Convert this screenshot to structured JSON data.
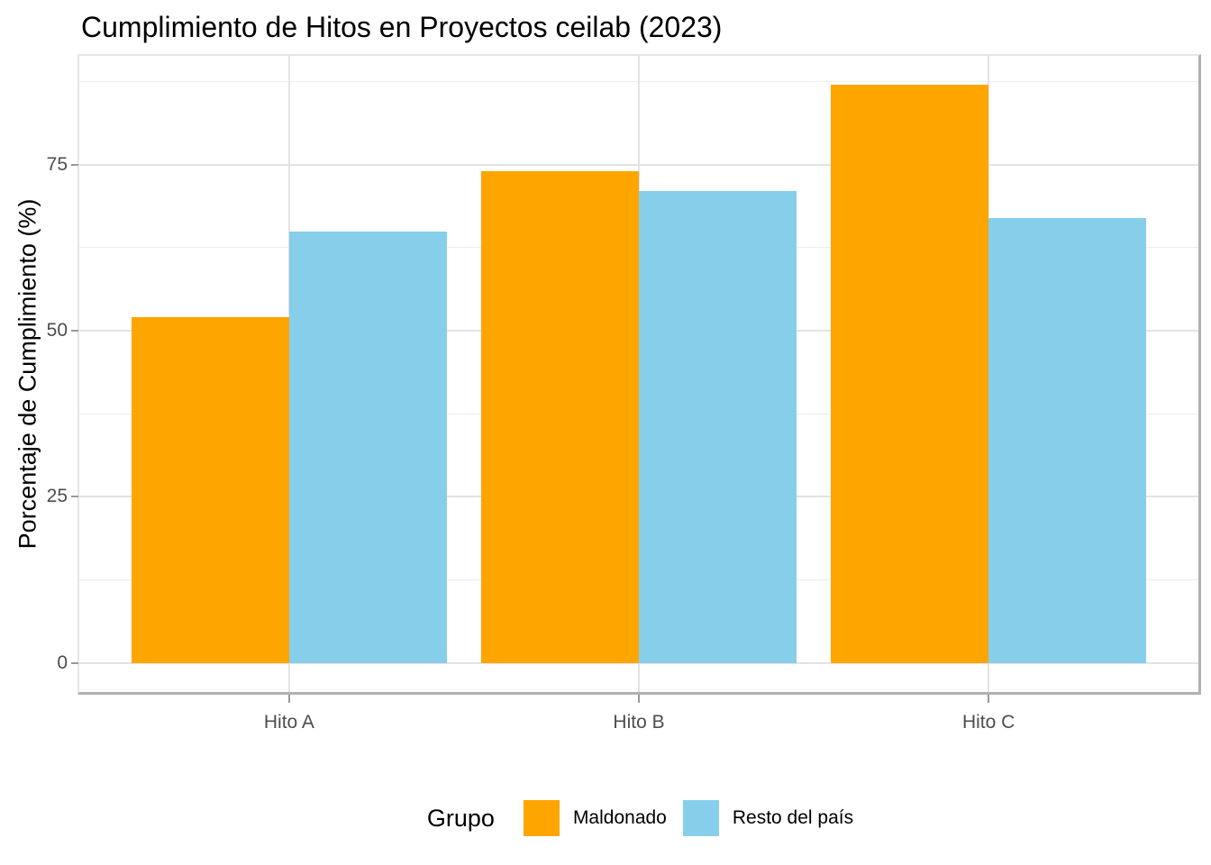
{
  "chart_data": {
    "type": "bar",
    "title": "Cumplimiento de Hitos en Proyectos ceilab (2023)",
    "xlabel": "",
    "ylabel": "Porcentaje de Cumplimiento (%)",
    "categories": [
      "Hito A",
      "Hito B",
      "Hito C"
    ],
    "series": [
      {
        "name": "Maldonado",
        "color": "#FFA500",
        "values": [
          52,
          74,
          87
        ]
      },
      {
        "name": "Resto del país",
        "color": "#87CEEB",
        "values": [
          65,
          71,
          67
        ]
      }
    ],
    "legend": {
      "title": "Grupo",
      "position": "bottom"
    },
    "axes": {
      "y_major_ticks": [
        0,
        25,
        50,
        75
      ],
      "y_minor_ticks": [
        12.5,
        37.5,
        62.5,
        87.5
      ],
      "ylim": [
        -4.4,
        91.4
      ],
      "grid": true
    }
  }
}
